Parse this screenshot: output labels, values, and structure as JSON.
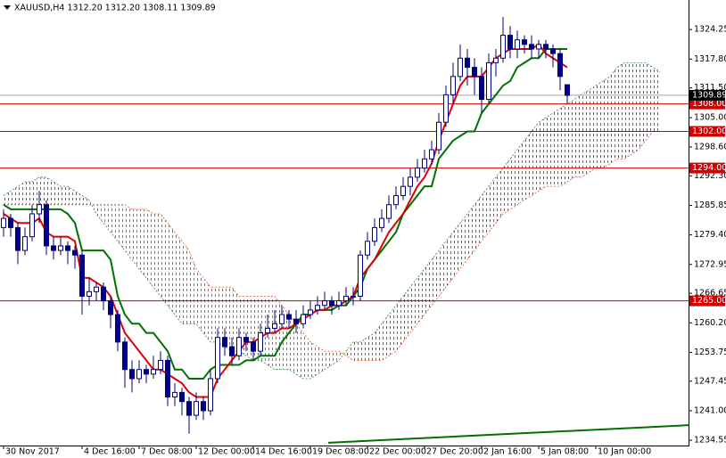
{
  "chart_data": {
    "type": "candlestick",
    "header": "XAUUSD,H4  1312.20 1312.20 1308.11 1309.89",
    "up_color": "#ffffff",
    "down_color": "#000080",
    "candle_stroke": "#000080",
    "ohlc": [
      [
        1281,
        1285,
        1279,
        1283
      ],
      [
        1283,
        1284,
        1279,
        1281
      ],
      [
        1281,
        1282,
        1273,
        1276
      ],
      [
        1276,
        1281,
        1275,
        1279
      ],
      [
        1279,
        1286,
        1278,
        1284
      ],
      [
        1284,
        1289,
        1282,
        1286
      ],
      [
        1286,
        1287,
        1275,
        1277
      ],
      [
        1277,
        1279,
        1274,
        1276
      ],
      [
        1276,
        1279,
        1275,
        1277
      ],
      [
        1277,
        1278,
        1273,
        1276
      ],
      [
        1276,
        1277,
        1272,
        1275
      ],
      [
        1275,
        1276,
        1262,
        1266
      ],
      [
        1266,
        1270,
        1264,
        1267
      ],
      [
        1267,
        1269,
        1265,
        1268
      ],
      [
        1268,
        1269,
        1263,
        1265
      ],
      [
        1265,
        1266,
        1259,
        1262
      ],
      [
        1262,
        1263,
        1254,
        1256
      ],
      [
        1256,
        1257,
        1246,
        1250
      ],
      [
        1250,
        1252,
        1245,
        1248
      ],
      [
        1248,
        1252,
        1247,
        1250
      ],
      [
        1250,
        1251,
        1247,
        1249
      ],
      [
        1249,
        1253,
        1248,
        1250
      ],
      [
        1250,
        1254,
        1249,
        1252
      ],
      [
        1252,
        1253,
        1242,
        1244
      ],
      [
        1244,
        1247,
        1242,
        1245
      ],
      [
        1245,
        1246,
        1240,
        1243
      ],
      [
        1243,
        1244,
        1236,
        1240
      ],
      [
        1240,
        1245,
        1239,
        1243
      ],
      [
        1243,
        1244,
        1239,
        1241
      ],
      [
        1241,
        1250,
        1240,
        1248
      ],
      [
        1248,
        1259,
        1247,
        1257
      ],
      [
        1257,
        1259,
        1253,
        1255
      ],
      [
        1255,
        1257,
        1251,
        1253
      ],
      [
        1253,
        1259,
        1252,
        1257
      ],
      [
        1257,
        1258,
        1254,
        1256
      ],
      [
        1256,
        1257,
        1252,
        1254
      ],
      [
        1254,
        1260,
        1253,
        1258
      ],
      [
        1258,
        1262,
        1257,
        1259
      ],
      [
        1259,
        1263,
        1258,
        1260
      ],
      [
        1260,
        1264,
        1259,
        1262
      ],
      [
        1262,
        1263,
        1259,
        1261
      ],
      [
        1261,
        1263,
        1258,
        1260
      ],
      [
        1260,
        1264,
        1259,
        1262
      ],
      [
        1262,
        1265,
        1261,
        1263
      ],
      [
        1263,
        1266,
        1262,
        1264
      ],
      [
        1264,
        1267,
        1263,
        1265
      ],
      [
        1265,
        1266,
        1262,
        1264
      ],
      [
        1264,
        1267,
        1263,
        1265
      ],
      [
        1265,
        1268,
        1264,
        1266
      ],
      [
        1266,
        1268,
        1264,
        1266
      ],
      [
        1266,
        1276,
        1265,
        1275
      ],
      [
        1275,
        1280,
        1274,
        1278
      ],
      [
        1278,
        1283,
        1277,
        1281
      ],
      [
        1281,
        1285,
        1280,
        1283
      ],
      [
        1283,
        1288,
        1282,
        1286
      ],
      [
        1286,
        1290,
        1285,
        1288
      ],
      [
        1288,
        1292,
        1287,
        1290
      ],
      [
        1290,
        1294,
        1288,
        1292
      ],
      [
        1292,
        1296,
        1291,
        1294
      ],
      [
        1294,
        1298,
        1293,
        1296
      ],
      [
        1296,
        1300,
        1295,
        1298
      ],
      [
        1298,
        1306,
        1297,
        1304
      ],
      [
        1304,
        1312,
        1303,
        1310
      ],
      [
        1310,
        1317,
        1308,
        1314
      ],
      [
        1314,
        1321,
        1313,
        1318
      ],
      [
        1318,
        1320,
        1312,
        1316
      ],
      [
        1316,
        1318,
        1310,
        1314
      ],
      [
        1314,
        1316,
        1306,
        1309
      ],
      [
        1309,
        1319,
        1308,
        1317
      ],
      [
        1317,
        1320,
        1314,
        1318
      ],
      [
        1318,
        1327,
        1317,
        1323
      ],
      [
        1323,
        1325,
        1318,
        1320
      ],
      [
        1320,
        1324,
        1318,
        1322
      ],
      [
        1322,
        1323,
        1319,
        1321
      ],
      [
        1321,
        1323,
        1318,
        1320
      ],
      [
        1320,
        1322,
        1318,
        1321
      ],
      [
        1321,
        1322,
        1318,
        1320
      ],
      [
        1320,
        1321,
        1316,
        1319
      ],
      [
        1319,
        1320,
        1311,
        1314
      ],
      [
        1312.2,
        1312.2,
        1308.11,
        1309.89
      ]
    ],
    "tenkan": {
      "color": "#e00000",
      "values": [
        1284,
        1283,
        1282,
        1282,
        1282,
        1283,
        1280,
        1279,
        1279,
        1279,
        1278,
        1270,
        1270,
        1269,
        1268,
        1266,
        1262,
        1258,
        1256,
        1254,
        1252,
        1250,
        1250,
        1249,
        1248,
        1247,
        1245,
        1244,
        1244,
        1244,
        1248,
        1250,
        1252,
        1254,
        1256,
        1256,
        1257,
        1258,
        1258,
        1259,
        1259,
        1260,
        1261,
        1262,
        1263,
        1263,
        1264,
        1264,
        1265,
        1266,
        1270,
        1272,
        1274,
        1277,
        1280,
        1282,
        1284,
        1287,
        1290,
        1292,
        1295,
        1300,
        1304,
        1308,
        1312,
        1314,
        1314,
        1314,
        1316,
        1318,
        1319,
        1320,
        1320,
        1320,
        1320,
        1321,
        1319,
        1318,
        1317,
        1316
      ]
    },
    "kijun": {
      "color": "#007000",
      "values": [
        1286,
        1285,
        1285,
        1285,
        1285,
        1285,
        1285,
        1285,
        1285,
        1284,
        1282,
        1276,
        1276,
        1276,
        1276,
        1274,
        1266,
        1262,
        1260,
        1260,
        1258,
        1258,
        1256,
        1254,
        1250,
        1250,
        1248,
        1248,
        1248,
        1250,
        1251,
        1251,
        1251,
        1251,
        1252,
        1252,
        1253,
        1253,
        1253,
        1256,
        1258,
        1260,
        1262,
        1262,
        1263,
        1263,
        1263,
        1264,
        1264,
        1266,
        1268,
        1272,
        1274,
        1276,
        1278,
        1280,
        1284,
        1286,
        1288,
        1290,
        1290,
        1296,
        1298,
        1300,
        1301,
        1302,
        1302,
        1306,
        1308,
        1310,
        1312,
        1313,
        1316,
        1317,
        1318,
        1318,
        1320,
        1320,
        1320,
        1320
      ]
    },
    "cloud": {
      "bull_color": "#2e8b3a",
      "bear_color": "#e2561b",
      "span_a": [
        1288,
        1289,
        1290,
        1291,
        1291,
        1292,
        1292,
        1291,
        1290,
        1290,
        1289,
        1288,
        1287,
        1284,
        1282,
        1280,
        1278,
        1276,
        1274,
        1272,
        1270,
        1268,
        1266,
        1264,
        1262,
        1260,
        1260,
        1260,
        1258,
        1256,
        1256,
        1255,
        1254,
        1254,
        1253,
        1252,
        1252,
        1251,
        1250,
        1250,
        1250,
        1249,
        1248,
        1248,
        1249,
        1250,
        1251,
        1252,
        1254,
        1256,
        1256,
        1257,
        1258,
        1260,
        1262,
        1264,
        1266,
        1268,
        1270,
        1272,
        1274,
        1276,
        1278,
        1280,
        1282,
        1284,
        1286,
        1288,
        1290,
        1292,
        1294,
        1296,
        1298,
        1300,
        1302,
        1304,
        1305,
        1306,
        1307,
        1308,
        1309,
        1310,
        1311,
        1312,
        1313,
        1314,
        1316,
        1317,
        1317,
        1317,
        1317,
        1316,
        1315
      ],
      "span_b": [
        1286,
        1286,
        1286,
        1286,
        1286,
        1286,
        1286,
        1286,
        1286,
        1286,
        1286,
        1286,
        1286,
        1286,
        1286,
        1286,
        1286,
        1286,
        1285,
        1285,
        1285,
        1284,
        1284,
        1282,
        1280,
        1278,
        1276,
        1272,
        1270,
        1268,
        1268,
        1268,
        1268,
        1266,
        1266,
        1266,
        1266,
        1266,
        1266,
        1264,
        1262,
        1260,
        1258,
        1256,
        1255,
        1254,
        1254,
        1254,
        1253,
        1252,
        1252,
        1252,
        1252,
        1252,
        1253,
        1254,
        1256,
        1258,
        1260,
        1262,
        1264,
        1266,
        1268,
        1270,
        1272,
        1274,
        1276,
        1278,
        1280,
        1282,
        1284,
        1285,
        1286,
        1287,
        1288,
        1289,
        1290,
        1290,
        1290,
        1291,
        1292,
        1292,
        1293,
        1294,
        1294,
        1295,
        1296,
        1296,
        1297,
        1298,
        1300,
        1302,
        1302
      ]
    },
    "levels": {
      "color": "#d00000",
      "values": [
        {
          "value": 1308,
          "label": "1308.00"
        },
        {
          "value": 1302,
          "label": "1302.00"
        },
        {
          "value": 1294,
          "label": "1294.00"
        },
        {
          "value": 1265,
          "label": "1265.00"
        }
      ]
    },
    "price_line": {
      "value": 1309.89,
      "color": "#a0a0a0"
    },
    "trendline": {
      "color": "#007000",
      "x": [
        45.5,
        96
      ],
      "y": [
        1234.0,
        1237.85
      ]
    },
    "xlim": [
      -0.5,
      96
    ],
    "ylim": [
      1233.4,
      1330.7
    ],
    "xticks": [
      {
        "value": 0,
        "label": "30 Nov 2017"
      },
      {
        "value": 11,
        "label": "4 Dec 16:00"
      },
      {
        "value": 19,
        "label": "7 Dec 08:00"
      },
      {
        "value": 27,
        "label": "12 Dec 00:00"
      },
      {
        "value": 35,
        "label": "14 Dec 16:00"
      },
      {
        "value": 43,
        "label": "19 Dec 08:00"
      },
      {
        "value": 51,
        "label": "22 Dec 00:00"
      },
      {
        "value": 59,
        "label": "27 Dec 20:00"
      },
      {
        "value": 67,
        "label": "2 Jan 16:00"
      },
      {
        "value": 75,
        "label": "5 Jan 08:00"
      },
      {
        "value": 83,
        "label": "10 Jan 00:00"
      }
    ],
    "yticks": [
      1324.25,
      {
        "value": 1317.8,
        "label": "1317.80"
      },
      {
        "value": 1311.5,
        "label": "1311.50"
      },
      {
        "value": 1305,
        "label": "1305.00"
      },
      {
        "value": 1298.6,
        "label": "1298.60"
      },
      {
        "value": 1292.3,
        "label": "1292.30"
      },
      1285.85,
      {
        "value": 1279.4,
        "label": "1279.40"
      },
      1272.95,
      1266.65,
      {
        "value": 1260.2,
        "label": "1260.20"
      },
      1253.75,
      1247.45,
      {
        "value": 1241,
        "label": "1241.00"
      },
      1234.55
    ]
  }
}
